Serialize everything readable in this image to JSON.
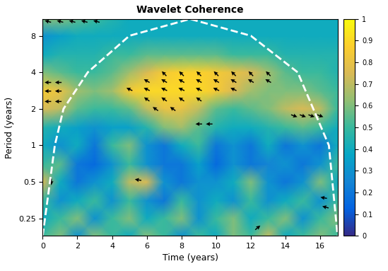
{
  "chart_data": {
    "type": "heatmap",
    "title": "Wavelet Coherence",
    "x_label": "Time (years)",
    "y_label": "Period (years)",
    "log": "y",
    "x": [
      0,
      1,
      2,
      3,
      4,
      5,
      6,
      7,
      8,
      9,
      10,
      11,
      12,
      13,
      14,
      15,
      16,
      17
    ],
    "y": [
      0.18,
      0.25,
      0.35,
      0.5,
      0.7,
      1,
      1.4,
      2,
      2.8,
      4,
      5.6,
      8,
      11
    ],
    "cells": [
      [
        0.5,
        0.6,
        0.3,
        0.6,
        0.5,
        0.4,
        0.6,
        0.5,
        0.3,
        0.5,
        0.4,
        0.6,
        0.5,
        0.7,
        0.4,
        0.5,
        0.6,
        0.5
      ],
      [
        0.4,
        0.5,
        0.6,
        0.3,
        0.5,
        0.6,
        0.4,
        0.5,
        0.6,
        0.3,
        0.5,
        0.6,
        0.4,
        0.5,
        0.6,
        0.3,
        0.5,
        0.6
      ],
      [
        0.5,
        0.3,
        0.4,
        0.5,
        0.3,
        0.5,
        0.3,
        0.2,
        0.5,
        0.3,
        0.4,
        0.3,
        0.5,
        0.3,
        0.4,
        0.5,
        0.3,
        0.5
      ],
      [
        0.75,
        0.4,
        0.2,
        0.3,
        0.4,
        0.7,
        0.75,
        0.3,
        0.2,
        0.3,
        0.3,
        0.4,
        0.6,
        0.3,
        0.2,
        0.3,
        0.6,
        0.4
      ],
      [
        0.5,
        0.55,
        0.2,
        0.15,
        0.3,
        0.5,
        0.3,
        0.2,
        0.2,
        0.35,
        0.15,
        0.3,
        0.2,
        0.25,
        0.3,
        0.2,
        0.3,
        0.5
      ],
      [
        0.4,
        0.3,
        0.4,
        0.2,
        0.5,
        0.6,
        0.3,
        0.2,
        0.4,
        0.5,
        0.2,
        0.3,
        0.2,
        0.4,
        0.2,
        0.3,
        0.2,
        0.4
      ],
      [
        0.45,
        0.4,
        0.35,
        0.3,
        0.35,
        0.35,
        0.45,
        0.6,
        0.65,
        0.55,
        0.45,
        0.4,
        0.4,
        0.45,
        0.5,
        0.55,
        0.5,
        0.4
      ],
      [
        0.75,
        0.7,
        0.55,
        0.5,
        0.5,
        0.55,
        0.7,
        0.8,
        0.8,
        0.7,
        0.55,
        0.5,
        0.55,
        0.6,
        0.7,
        0.75,
        0.7,
        0.5
      ],
      [
        0.85,
        0.8,
        0.65,
        0.6,
        0.65,
        0.85,
        0.9,
        0.9,
        0.9,
        0.9,
        0.85,
        0.75,
        0.65,
        0.6,
        0.6,
        0.6,
        0.55,
        0.5
      ],
      [
        0.6,
        0.55,
        0.5,
        0.5,
        0.55,
        0.65,
        0.75,
        0.85,
        0.88,
        0.88,
        0.85,
        0.8,
        0.75,
        0.65,
        0.55,
        0.5,
        0.5,
        0.45
      ],
      [
        0.4,
        0.45,
        0.45,
        0.45,
        0.5,
        0.5,
        0.55,
        0.55,
        0.55,
        0.55,
        0.55,
        0.5,
        0.5,
        0.5,
        0.45,
        0.45,
        0.45,
        0.45
      ],
      [
        0.3,
        0.35,
        0.4,
        0.4,
        0.4,
        0.4,
        0.4,
        0.4,
        0.4,
        0.4,
        0.4,
        0.4,
        0.4,
        0.4,
        0.4,
        0.4,
        0.4,
        0.4
      ],
      [
        0.6,
        0.6,
        0.55,
        0.5,
        0.45,
        0.4,
        0.4,
        0.4,
        0.4,
        0.4,
        0.4,
        0.4,
        0.4,
        0.4,
        0.4,
        0.4,
        0.4,
        0.4
      ]
    ],
    "xlim": [
      0,
      17
    ],
    "ylim": [
      0.18,
      11
    ],
    "xticks": [
      0,
      2,
      4,
      6,
      8,
      10,
      12,
      14,
      16
    ],
    "yticks": [
      0.25,
      0.5,
      1,
      2,
      4,
      8
    ],
    "colorbar_range": [
      0,
      1
    ],
    "colorbar_ticks": [
      0,
      0.1,
      0.2,
      0.3,
      0.4,
      0.5,
      0.6,
      0.7,
      0.8,
      0.9,
      1
    ],
    "coi": {
      "x": [
        0,
        0.7,
        1.2,
        2.6,
        5,
        8.5,
        12,
        14.7,
        16.5,
        17
      ],
      "period": [
        0.18,
        1,
        2,
        4,
        8,
        11,
        8,
        4,
        1,
        0.18
      ]
    },
    "arrows": [
      {
        "x": 7,
        "period": 3.9,
        "angle": 135
      },
      {
        "x": 8,
        "period": 3.9,
        "angle": 135
      },
      {
        "x": 9,
        "period": 3.9,
        "angle": 135
      },
      {
        "x": 10,
        "period": 3.9,
        "angle": 135
      },
      {
        "x": 11,
        "period": 3.9,
        "angle": 135
      },
      {
        "x": 12,
        "period": 3.9,
        "angle": 135
      },
      {
        "x": 13,
        "period": 3.9,
        "angle": 135
      },
      {
        "x": 6,
        "period": 3.4,
        "angle": 150
      },
      {
        "x": 7,
        "period": 3.4,
        "angle": 150
      },
      {
        "x": 8,
        "period": 3.4,
        "angle": 150
      },
      {
        "x": 9,
        "period": 3.4,
        "angle": 150
      },
      {
        "x": 10,
        "period": 3.4,
        "angle": 150
      },
      {
        "x": 11,
        "period": 3.4,
        "angle": 150
      },
      {
        "x": 12,
        "period": 3.4,
        "angle": 150
      },
      {
        "x": 13,
        "period": 3.4,
        "angle": 150
      },
      {
        "x": 5,
        "period": 2.9,
        "angle": 155
      },
      {
        "x": 6,
        "period": 2.9,
        "angle": 155
      },
      {
        "x": 7,
        "period": 2.9,
        "angle": 155
      },
      {
        "x": 8,
        "period": 2.9,
        "angle": 155
      },
      {
        "x": 9,
        "period": 2.9,
        "angle": 155
      },
      {
        "x": 10,
        "period": 2.9,
        "angle": 155
      },
      {
        "x": 11,
        "period": 2.9,
        "angle": 155
      },
      {
        "x": 6,
        "period": 2.4,
        "angle": 145
      },
      {
        "x": 7,
        "period": 2.4,
        "angle": 145
      },
      {
        "x": 8,
        "period": 2.4,
        "angle": 145
      },
      {
        "x": 9,
        "period": 2.4,
        "angle": 145
      },
      {
        "x": 6.5,
        "period": 2.0,
        "angle": 145
      },
      {
        "x": 7.5,
        "period": 2.0,
        "angle": 145
      },
      {
        "x": 9,
        "period": 1.5,
        "angle": 180
      },
      {
        "x": 9.6,
        "period": 1.5,
        "angle": 180
      },
      {
        "x": 0.3,
        "period": 3.3,
        "angle": 180
      },
      {
        "x": 0.9,
        "period": 3.3,
        "angle": 180
      },
      {
        "x": 0.3,
        "period": 2.8,
        "angle": 180
      },
      {
        "x": 0.9,
        "period": 2.8,
        "angle": 180
      },
      {
        "x": 0.3,
        "period": 2.3,
        "angle": 180
      },
      {
        "x": 0.9,
        "period": 2.3,
        "angle": 180
      },
      {
        "x": 14.5,
        "period": 1.75,
        "angle": -20
      },
      {
        "x": 15,
        "period": 1.75,
        "angle": -20
      },
      {
        "x": 15.5,
        "period": 1.75,
        "angle": -20
      },
      {
        "x": 16,
        "period": 1.75,
        "angle": -20
      },
      {
        "x": 0.3,
        "period": 10.5,
        "angle": 165
      },
      {
        "x": 1,
        "period": 10.5,
        "angle": 165
      },
      {
        "x": 1.7,
        "period": 10.5,
        "angle": 165
      },
      {
        "x": 2.4,
        "period": 10.5,
        "angle": 165
      },
      {
        "x": 3.1,
        "period": 10.5,
        "angle": 165
      },
      {
        "x": 0.5,
        "period": 0.5,
        "angle": -90
      },
      {
        "x": 5.5,
        "period": 0.52,
        "angle": 170
      },
      {
        "x": 16.2,
        "period": 0.37,
        "angle": 170
      },
      {
        "x": 16.3,
        "period": 0.31,
        "angle": 165
      },
      {
        "x": 12.4,
        "period": 0.21,
        "angle": 40
      }
    ]
  }
}
